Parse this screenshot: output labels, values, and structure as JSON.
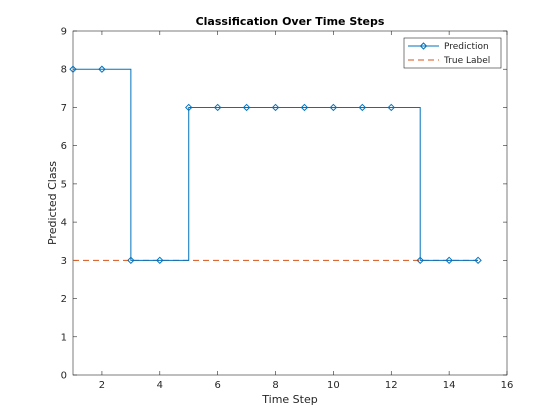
{
  "chart_data": {
    "type": "line",
    "title": "Classification Over Time Steps",
    "xlabel": "Time Step",
    "ylabel": "Predicted Class",
    "xlim": [
      1,
      16
    ],
    "ylim": [
      0,
      9
    ],
    "xticks": [
      2,
      4,
      6,
      8,
      10,
      12,
      14,
      16
    ],
    "yticks": [
      0,
      1,
      2,
      3,
      4,
      5,
      6,
      7,
      8,
      9
    ],
    "grid": false,
    "legend_position": "top-right",
    "series": [
      {
        "name": "Prediction",
        "style": "stairs",
        "marker": "diamond",
        "color": "#0072BD",
        "x": [
          1,
          2,
          3,
          4,
          5,
          6,
          7,
          8,
          9,
          10,
          11,
          12,
          13,
          14,
          15
        ],
        "y": [
          8,
          8,
          3,
          3,
          7,
          7,
          7,
          7,
          7,
          7,
          7,
          7,
          3,
          3,
          3
        ]
      },
      {
        "name": "True Label",
        "style": "dashed",
        "color": "#D95319",
        "x": [
          1,
          15
        ],
        "y": [
          3,
          3
        ]
      }
    ]
  }
}
